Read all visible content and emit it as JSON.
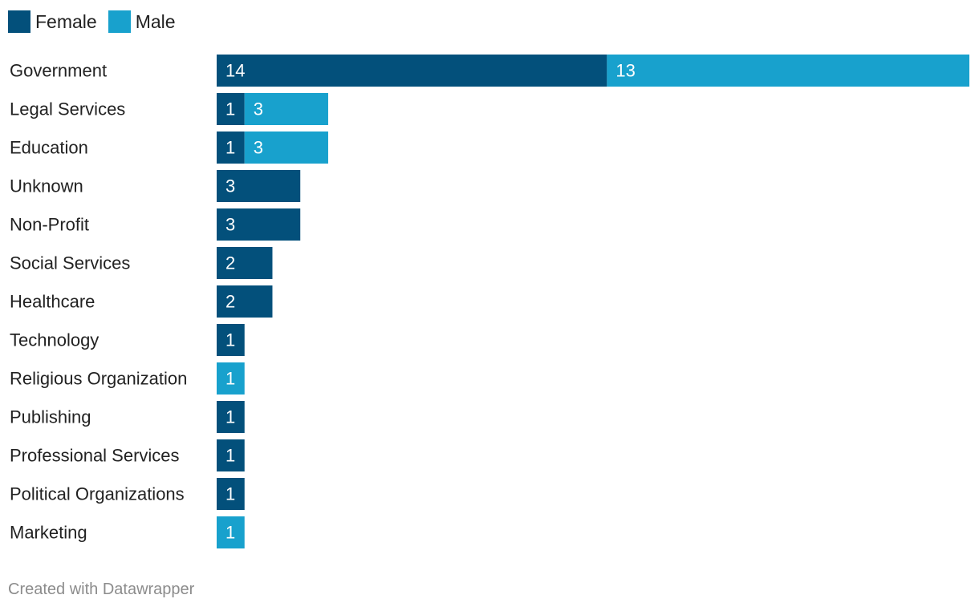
{
  "legend": {
    "female_label": "Female",
    "male_label": "Male"
  },
  "colors": {
    "female": "#03507b",
    "male": "#18a1cd"
  },
  "footer": {
    "credit": "Created with Datawrapper"
  },
  "chart_data": {
    "type": "bar",
    "orientation": "horizontal",
    "stacked": true,
    "categories": [
      "Government",
      "Legal Services",
      "Education",
      "Unknown",
      "Non-Profit",
      "Social Services",
      "Healthcare",
      "Technology",
      "Religious Organization",
      "Publishing",
      "Professional Services",
      "Political Organizations",
      "Marketing"
    ],
    "series": [
      {
        "name": "Female",
        "values": [
          14,
          1,
          1,
          3,
          3,
          2,
          2,
          1,
          0,
          1,
          1,
          1,
          0
        ]
      },
      {
        "name": "Male",
        "values": [
          13,
          3,
          3,
          0,
          0,
          0,
          0,
          0,
          1,
          0,
          0,
          0,
          1
        ]
      }
    ],
    "xlim": [
      0,
      27
    ],
    "grid": false,
    "legend_position": "top-left",
    "data_labels": true
  }
}
